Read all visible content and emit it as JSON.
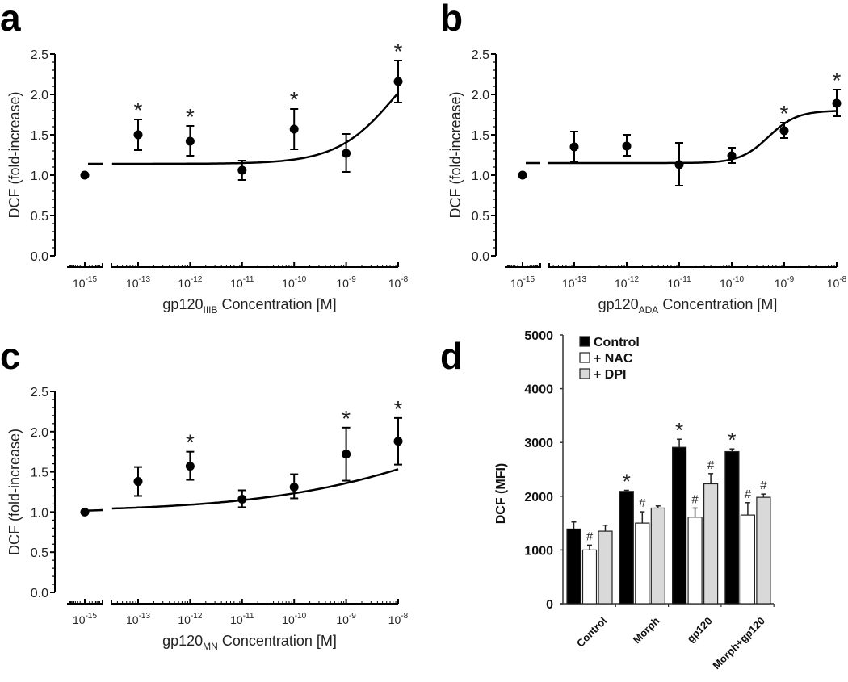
{
  "chart_data": [
    {
      "panel": "a",
      "type": "scatter",
      "ylabel": "DCF (fold-increase)",
      "xlabel": {
        "pre": "gp120",
        "sub": "IIIB",
        "post": " Concentration [M]"
      },
      "ylim": [
        0,
        2.5
      ],
      "yticks": [
        "0.0",
        "0.5",
        "1.0",
        "1.5",
        "2.0",
        "2.5"
      ],
      "xticks_exp": [
        -15,
        -13,
        -12,
        -11,
        -10,
        -9,
        -8
      ],
      "xtick_base": "10",
      "points": [
        {
          "exp": -15,
          "y": 1.0,
          "lo": 1.0,
          "hi": 1.0,
          "star": false
        },
        {
          "exp": -13,
          "y": 1.5,
          "lo": 1.31,
          "hi": 1.69,
          "star": true
        },
        {
          "exp": -12,
          "y": 1.42,
          "lo": 1.24,
          "hi": 1.61,
          "star": true
        },
        {
          "exp": -11,
          "y": 1.06,
          "lo": 0.94,
          "hi": 1.18,
          "star": false
        },
        {
          "exp": -10,
          "y": 1.57,
          "lo": 1.32,
          "hi": 1.82,
          "star": true
        },
        {
          "exp": -9,
          "y": 1.27,
          "lo": 1.04,
          "hi": 1.51,
          "star": false
        },
        {
          "exp": -8,
          "y": 2.16,
          "lo": 1.9,
          "hi": 2.42,
          "star": true
        }
      ],
      "fit": {
        "bottom": 1.14,
        "top": 2.9,
        "logEC50": -8.0,
        "hill": 0.75,
        "break_level": 1.14
      },
      "star_symbol": "*"
    },
    {
      "panel": "b",
      "type": "scatter",
      "ylabel": "DCF (fold-increase)",
      "xlabel": {
        "pre": "gp120",
        "sub": "ADA",
        "post": " Concentration [M]"
      },
      "ylim": [
        0,
        2.5
      ],
      "yticks": [
        "0.0",
        "0.5",
        "1.0",
        "1.5",
        "2.0",
        "2.5"
      ],
      "xticks_exp": [
        -15,
        -13,
        -12,
        -11,
        -10,
        -9,
        -8
      ],
      "xtick_base": "10",
      "points": [
        {
          "exp": -15,
          "y": 1.0,
          "lo": 1.0,
          "hi": 1.0,
          "star": false
        },
        {
          "exp": -13,
          "y": 1.35,
          "lo": 1.17,
          "hi": 1.54,
          "star": false
        },
        {
          "exp": -12,
          "y": 1.36,
          "lo": 1.24,
          "hi": 1.5,
          "star": false
        },
        {
          "exp": -11,
          "y": 1.13,
          "lo": 0.87,
          "hi": 1.4,
          "star": false
        },
        {
          "exp": -10,
          "y": 1.24,
          "lo": 1.15,
          "hi": 1.34,
          "star": false
        },
        {
          "exp": -9,
          "y": 1.55,
          "lo": 1.46,
          "hi": 1.65,
          "star": true
        },
        {
          "exp": -8,
          "y": 1.89,
          "lo": 1.73,
          "hi": 2.06,
          "star": true
        }
      ],
      "fit": {
        "bottom": 1.15,
        "top": 1.8,
        "logEC50": -9.3,
        "hill": 1.6,
        "break_level": 1.15
      },
      "star_symbol": "*"
    },
    {
      "panel": "c",
      "type": "scatter",
      "ylabel": "DCF (fold-increase)",
      "xlabel": {
        "pre": "gp120",
        "sub": "MN",
        "post": " Concentration [M]"
      },
      "ylim": [
        0,
        2.5
      ],
      "yticks": [
        "0.0",
        "0.5",
        "1.0",
        "1.5",
        "2.0",
        "2.5"
      ],
      "xticks_exp": [
        -15,
        -13,
        -12,
        -11,
        -10,
        -9,
        -8
      ],
      "xtick_base": "10",
      "points": [
        {
          "exp": -15,
          "y": 1.0,
          "lo": 1.0,
          "hi": 1.0,
          "star": false
        },
        {
          "exp": -13,
          "y": 1.38,
          "lo": 1.2,
          "hi": 1.56,
          "star": false
        },
        {
          "exp": -12,
          "y": 1.57,
          "lo": 1.4,
          "hi": 1.75,
          "star": true
        },
        {
          "exp": -11,
          "y": 1.16,
          "lo": 1.06,
          "hi": 1.27,
          "star": false
        },
        {
          "exp": -10,
          "y": 1.31,
          "lo": 1.17,
          "hi": 1.47,
          "star": false
        },
        {
          "exp": -9,
          "y": 1.72,
          "lo": 1.39,
          "hi": 2.05,
          "star": true
        },
        {
          "exp": -8,
          "y": 1.88,
          "lo": 1.59,
          "hi": 2.17,
          "star": true
        }
      ],
      "fit": {
        "bottom": 1.0,
        "top": 3.0,
        "logEC50": -6.0,
        "hill": 0.22,
        "break_level": null
      },
      "star_symbol": "*"
    },
    {
      "panel": "d",
      "type": "bar",
      "ylabel": "DCF (MFI)",
      "ylim": [
        0,
        5000
      ],
      "yticks": [
        "0",
        "1000",
        "2000",
        "3000",
        "4000",
        "5000"
      ],
      "categories": [
        "Control",
        "Morph",
        "gp120",
        "Morph+gp120"
      ],
      "series": [
        {
          "name": "Control",
          "color": "#000000",
          "values": [
            1390,
            2090,
            2910,
            2830
          ],
          "errors": [
            130,
            20,
            150,
            50
          ],
          "marks": [
            "",
            "*",
            "*",
            "*"
          ]
        },
        {
          "name": "+ NAC",
          "color": "#ffffff",
          "values": [
            1000,
            1500,
            1610,
            1650
          ],
          "errors": [
            90,
            210,
            170,
            230
          ],
          "marks": [
            "#",
            "#",
            "#",
            "#"
          ]
        },
        {
          "name": "+ DPI",
          "color": "#d9d9d9",
          "values": [
            1350,
            1780,
            2230,
            1980
          ],
          "errors": [
            110,
            40,
            190,
            60
          ],
          "marks": [
            "",
            "",
            "#",
            "#"
          ]
        }
      ],
      "legend_position": "top-left"
    }
  ]
}
